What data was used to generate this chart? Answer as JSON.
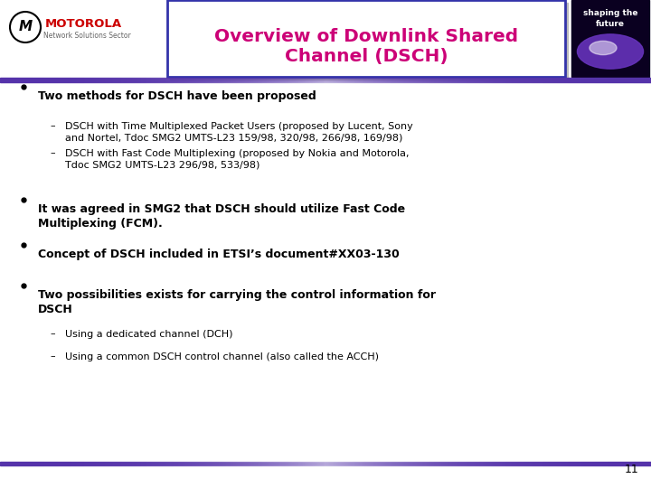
{
  "title_line1": "Overview of Downlink Shared",
  "title_line2": "Channel (DSCH)",
  "title_color": "#CC0077",
  "title_box_edge_color": "#3333AA",
  "bg_color": "#FFFFFF",
  "header_bar_color_dark": "#5533AA",
  "header_bar_color_light": "#AAAACC",
  "footer_bar_color_dark": "#5533AA",
  "footer_bar_color_light": "#AAAACC",
  "page_number": "11",
  "motorola_red": "#CC0000",
  "subtitle_text": "Network Solutions Sector",
  "shaping_text": "shaping the\nfuture",
  "bullet_items": [
    {
      "level": 1,
      "bold": true,
      "text": "Two methods for DSCH have been proposed"
    },
    {
      "level": 2,
      "bold": false,
      "text": "DSCH with Time Multiplexed Packet Users (proposed by Lucent, Sony\nand Nortel, Tdoc SMG2 UMTS-L23 159/98, 320/98, 266/98, 169/98)"
    },
    {
      "level": 2,
      "bold": false,
      "text": "DSCH with Fast Code Multiplexing (proposed by Nokia and Motorola,\nTdoc SMG2 UMTS-L23 296/98, 533/98)"
    },
    {
      "level": 1,
      "bold": true,
      "text": "It was agreed in SMG2 that DSCH should utilize Fast Code\nMultiplexing (FCM)."
    },
    {
      "level": 1,
      "bold": true,
      "text": "Concept of DSCH included in ETSI’s document#XX03-130"
    },
    {
      "level": 1,
      "bold": true,
      "text": "Two possibilities exists for carrying the control information for\nDSCH"
    },
    {
      "level": 2,
      "bold": false,
      "text": "Using a dedicated channel (DCH)"
    },
    {
      "level": 2,
      "bold": false,
      "text": "Using a common DSCH control channel (also called the ACCH)"
    }
  ]
}
